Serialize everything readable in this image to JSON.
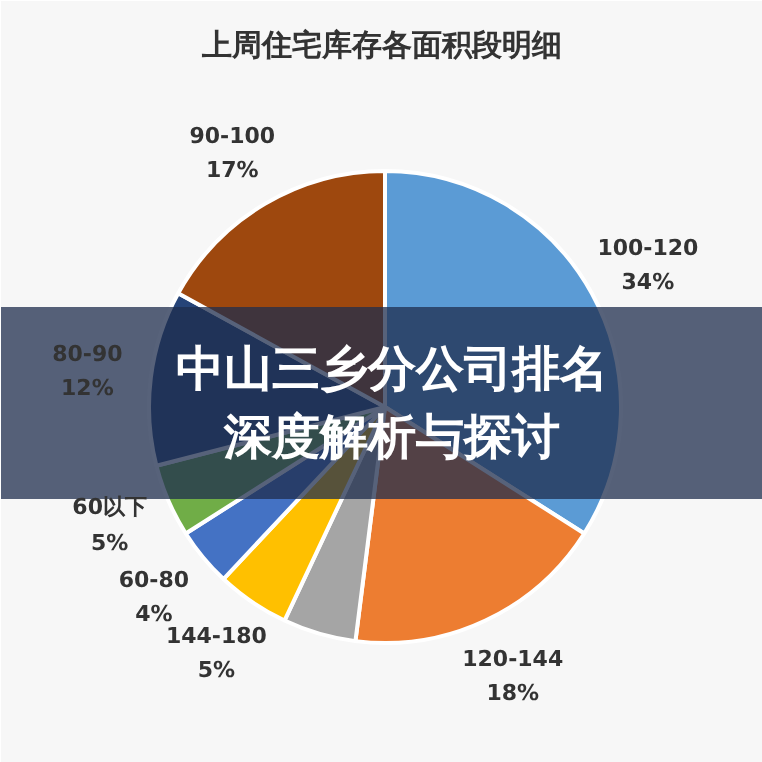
{
  "chart_data": {
    "type": "pie",
    "title": "上周住宅库存各面积段明细",
    "categories": [
      "100-120",
      "120-144",
      null,
      "144-180",
      "60-80",
      "60以下",
      "80-90",
      "90-100"
    ],
    "values": [
      34,
      18,
      5,
      5,
      4,
      5,
      12,
      17
    ],
    "value_labels": [
      "34%",
      "18%",
      null,
      "5%",
      "4%",
      "5%",
      "12%",
      "17%"
    ],
    "colors": [
      "#5b9bd5",
      "#ed7d31",
      "#a5a5a5",
      "#ffc000",
      "#4472c4",
      "#70ad47",
      "#264478",
      "#9e480e"
    ],
    "annotations": [
      "中山三乡分公司排名深度解析与探讨"
    ]
  }
}
